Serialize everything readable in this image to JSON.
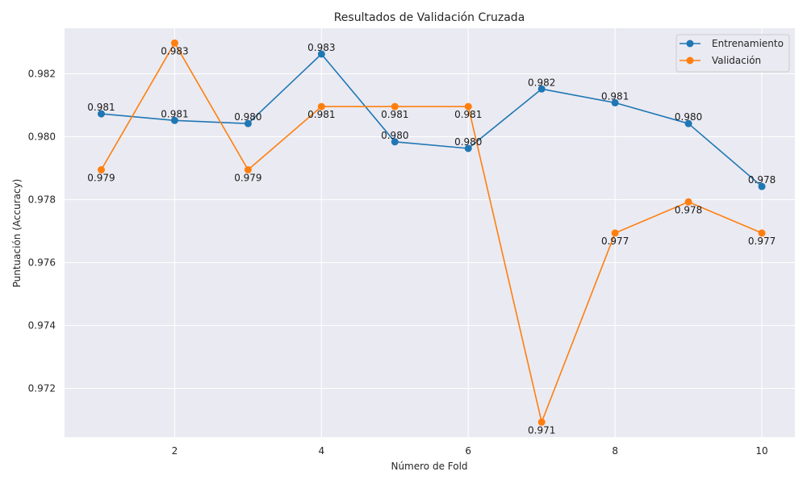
{
  "chart_data": {
    "type": "line",
    "title": "Resultados de Validación Cruzada",
    "xlabel": "Número de Fold",
    "ylabel": "Puntuación (Accuracy)",
    "xlim": [
      0.5,
      10.45
    ],
    "ylim": [
      0.97045,
      0.98345
    ],
    "xticks": [
      2,
      4,
      6,
      8,
      10
    ],
    "yticks": [
      0.972,
      0.974,
      0.976,
      0.978,
      0.98,
      0.982
    ],
    "ytick_labels": [
      "0.972",
      "0.974",
      "0.976",
      "0.978",
      "0.980",
      "0.982"
    ],
    "grid": true,
    "legend_position": "top-right",
    "x": [
      1,
      2,
      3,
      4,
      5,
      6,
      7,
      8,
      9,
      10
    ],
    "series": [
      {
        "name": "Entrenamiento",
        "color": "#1f77b4",
        "marker": "circle",
        "values": [
          0.98073,
          0.98052,
          0.98042,
          0.98263,
          0.97984,
          0.97963,
          0.98152,
          0.98108,
          0.98042,
          0.97842
        ],
        "labels": [
          "0.981",
          "0.981",
          "0.980",
          "0.983",
          "0.980",
          "0.980",
          "0.982",
          "0.981",
          "0.980",
          "0.978"
        ],
        "label_position": "above"
      },
      {
        "name": "Validación",
        "color": "#ff7f0e",
        "marker": "circle",
        "values": [
          0.97895,
          0.98298,
          0.97895,
          0.98096,
          0.98096,
          0.98096,
          0.97093,
          0.97694,
          0.97793,
          0.97694
        ],
        "labels": [
          "0.979",
          "0.983",
          "0.979",
          "0.981",
          "0.981",
          "0.981",
          "0.971",
          "0.977",
          "0.978",
          "0.977"
        ],
        "label_position": "below"
      }
    ]
  }
}
